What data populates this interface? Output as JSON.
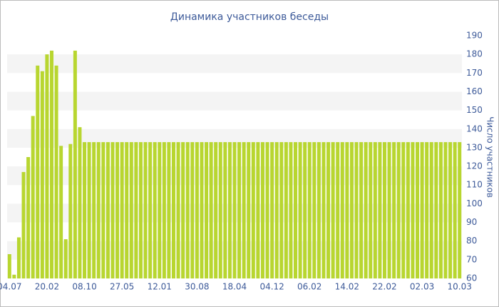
{
  "chart_data": {
    "type": "bar",
    "title": "Динамика участников беседы",
    "y_label": "Число участников",
    "categories": [
      "04.07",
      null,
      null,
      null,
      null,
      null,
      null,
      null,
      "20.02",
      null,
      null,
      null,
      null,
      null,
      null,
      null,
      "08.10",
      null,
      null,
      null,
      null,
      null,
      null,
      null,
      "27.05",
      null,
      null,
      null,
      null,
      null,
      null,
      null,
      "12.01",
      null,
      null,
      null,
      null,
      null,
      null,
      null,
      "30.08",
      null,
      null,
      null,
      null,
      null,
      null,
      null,
      "18.04",
      null,
      null,
      null,
      null,
      null,
      null,
      null,
      "04.12",
      null,
      null,
      null,
      null,
      null,
      null,
      null,
      "06.02",
      null,
      null,
      null,
      null,
      null,
      null,
      null,
      "14.02",
      null,
      null,
      null,
      null,
      null,
      null,
      null,
      "22.02",
      null,
      null,
      null,
      null,
      null,
      null,
      null,
      "02.03",
      null,
      null,
      null,
      null,
      null,
      null,
      null,
      "10.03"
    ],
    "values": [
      73,
      62,
      82,
      117,
      125,
      147,
      174,
      171,
      180,
      182,
      174,
      131,
      81,
      132,
      182,
      141,
      133,
      133,
      133,
      133,
      133,
      133,
      133,
      133,
      133,
      133,
      133,
      133,
      133,
      133,
      133,
      133,
      133,
      133,
      133,
      133,
      133,
      133,
      133,
      133,
      133,
      133,
      133,
      133,
      133,
      133,
      133,
      133,
      133,
      133,
      133,
      133,
      133,
      133,
      133,
      133,
      133,
      133,
      133,
      133,
      133,
      133,
      133,
      133,
      133,
      133,
      133,
      133,
      133,
      133,
      133,
      133,
      133,
      133,
      133,
      133,
      133,
      133,
      133,
      133,
      133,
      133,
      133,
      133,
      133,
      133,
      133,
      133,
      133,
      133,
      133,
      133,
      133,
      133,
      133,
      133,
      133
    ],
    "color": "#b8d630",
    "ylim": [
      60,
      190
    ],
    "yticks": [
      60,
      70,
      80,
      90,
      100,
      110,
      120,
      130,
      140,
      150,
      160,
      170,
      180,
      190
    ],
    "grid": true
  }
}
